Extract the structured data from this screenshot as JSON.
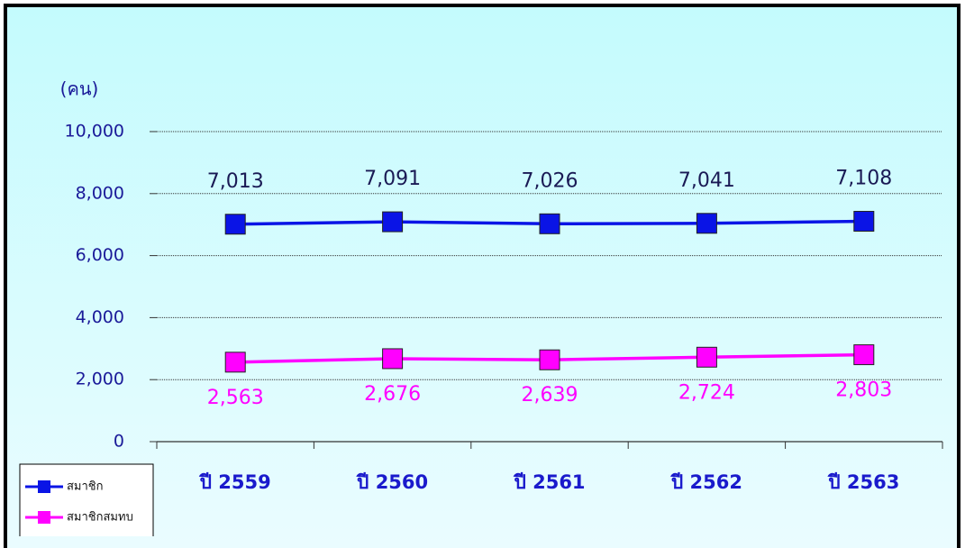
{
  "chart_data": {
    "type": "line",
    "y_label": "(คน)",
    "categories": [
      "ปี 2559",
      "ปี 2560",
      "ปี 2561",
      "ปี 2562",
      "ปี 2563"
    ],
    "series": [
      {
        "name": "สมาชิก",
        "color": "#0a14e6",
        "values": [
          7013,
          7091,
          7026,
          7041,
          7108
        ],
        "value_labels": [
          "7,013",
          "7,091",
          "7,026",
          "7,041",
          "7,108"
        ]
      },
      {
        "name": "สมาชิกสมทบ",
        "color": "#ff00ff",
        "values": [
          2563,
          2676,
          2639,
          2724,
          2803
        ],
        "value_labels": [
          "2,563",
          "2,676",
          "2,639",
          "2,724",
          "2,803"
        ]
      }
    ],
    "ylim": [
      0,
      10000
    ],
    "yticks": [
      0,
      {
        "value": 2000,
        "label": "2,000"
      },
      {
        "value": 4000,
        "label": "4,000"
      },
      {
        "value": 6000,
        "label": "6,000"
      },
      {
        "value": 8000,
        "label": "8,000"
      },
      {
        "value": 10000,
        "label": "10,000"
      }
    ],
    "grid": true,
    "legend": "bottom-left"
  }
}
